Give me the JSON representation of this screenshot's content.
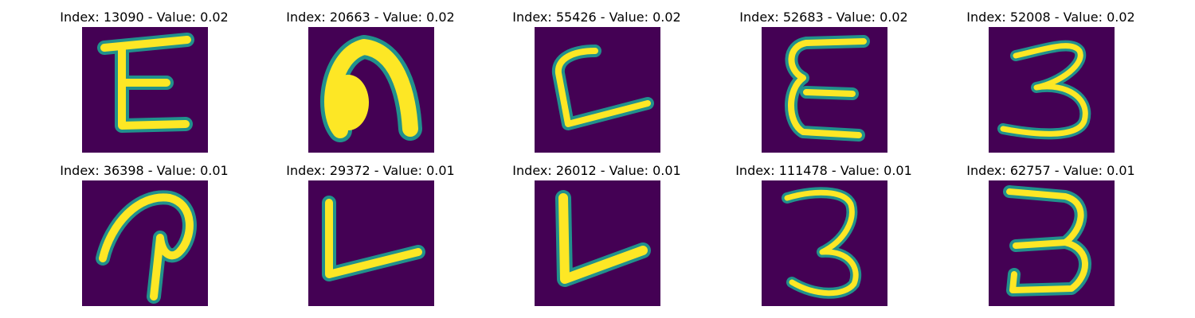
{
  "colors": {
    "background": "#440154",
    "stroke_mid": "#21918c",
    "stroke_core": "#fde725"
  },
  "panels": [
    {
      "title": "Index: 13090 - Value: 0.02",
      "glyph": "E"
    },
    {
      "title": "Index: 20663 - Value: 0.02",
      "glyph": "n"
    },
    {
      "title": "Index: 55426 - Value: 0.02",
      "glyph": "L"
    },
    {
      "title": "Index: 52683 - Value: 0.02",
      "glyph": "E"
    },
    {
      "title": "Index: 52008 - Value: 0.02",
      "glyph": "3"
    },
    {
      "title": "Index: 36398 - Value: 0.01",
      "glyph": "P"
    },
    {
      "title": "Index: 29372 - Value: 0.01",
      "glyph": "L"
    },
    {
      "title": "Index: 26012 - Value: 0.01",
      "glyph": "L"
    },
    {
      "title": "Index: 111478 - Value: 0.01",
      "glyph": "3"
    },
    {
      "title": "Index: 62757 - Value: 0.01",
      "glyph": "3"
    }
  ]
}
